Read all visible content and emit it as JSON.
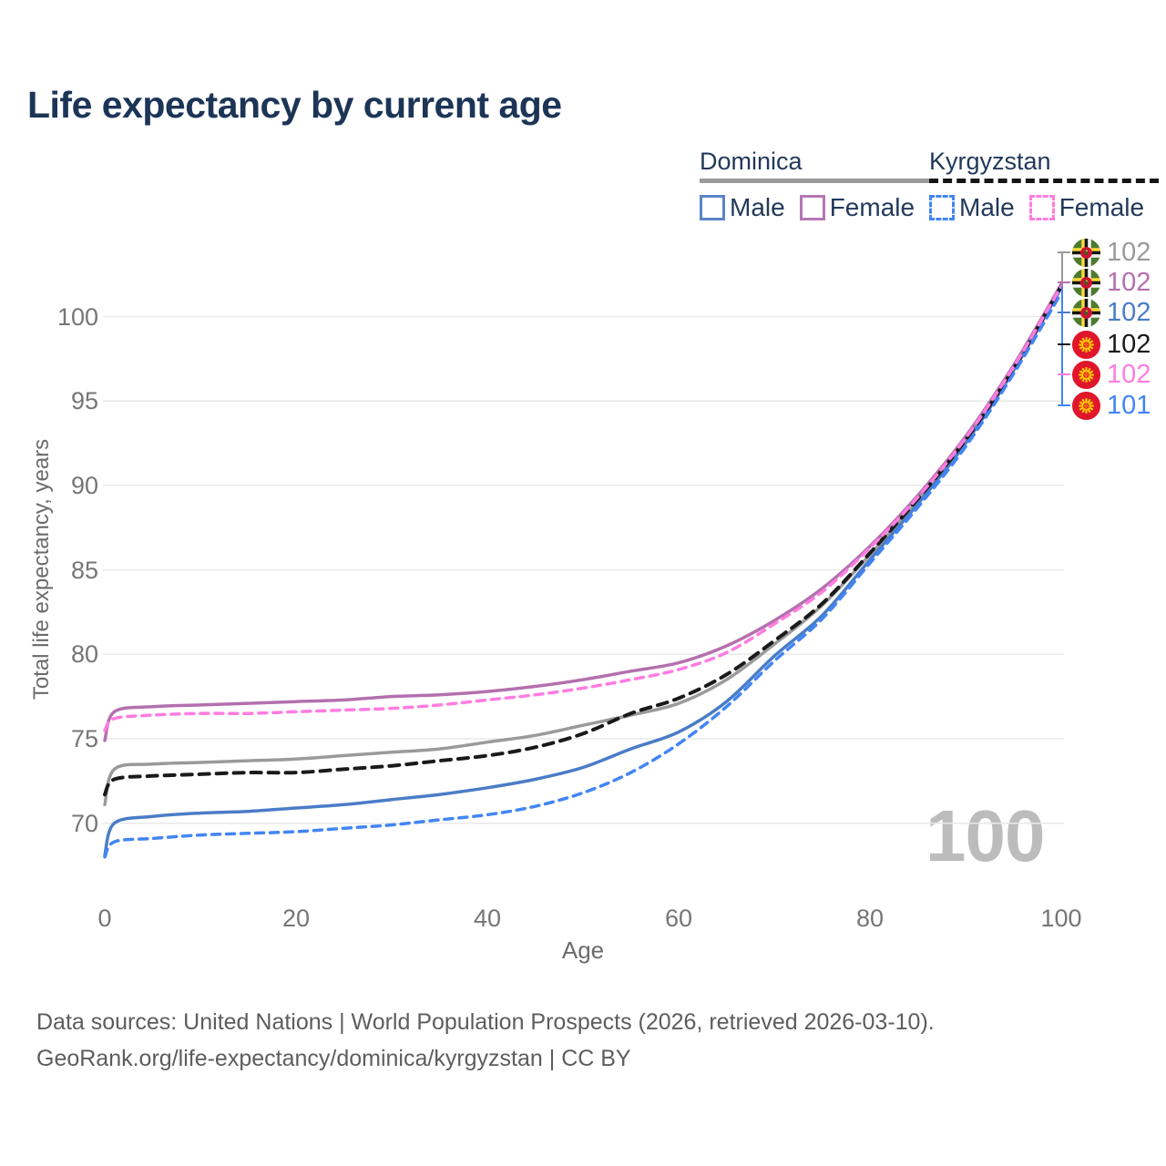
{
  "title": "Life expectancy by current age",
  "watermark": "100",
  "legend": {
    "groups": [
      {
        "name": "Dominica",
        "line_style": "solid",
        "underline_color": "#9a9a9a",
        "items": [
          {
            "label": "Male",
            "color": "#4a7cc7",
            "dashed": false
          },
          {
            "label": "Female",
            "color": "#b470ae",
            "dashed": false
          }
        ]
      },
      {
        "name": "Kyrgyzstan",
        "line_style": "dashed",
        "underline_color": "#1a1a1a",
        "items": [
          {
            "label": "Male",
            "color": "#4285f4",
            "dashed": true
          },
          {
            "label": "Female",
            "color": "#ff7ce1",
            "dashed": true
          }
        ]
      }
    ]
  },
  "y_axis": {
    "title": "Total life expectancy, years",
    "ticks": [
      70,
      75,
      80,
      85,
      90,
      95,
      100
    ]
  },
  "x_axis": {
    "title": "Age",
    "ticks": [
      0,
      20,
      40,
      60,
      80,
      100
    ]
  },
  "end_labels": [
    {
      "country": "Dominica",
      "series": "Total",
      "flag": "dominica",
      "value": "102",
      "color": "#9a9a9a"
    },
    {
      "country": "Dominica",
      "series": "Female",
      "flag": "dominica",
      "value": "102",
      "color": "#b470ae"
    },
    {
      "country": "Dominica",
      "series": "Male",
      "flag": "dominica",
      "value": "102",
      "color": "#4a7cc7"
    },
    {
      "country": "Kyrgyzstan",
      "series": "Total",
      "flag": "kyrgyzstan",
      "value": "102",
      "color": "#1a1a1a"
    },
    {
      "country": "Kyrgyzstan",
      "series": "Female",
      "flag": "kyrgyzstan",
      "value": "102",
      "color": "#ff7ce1"
    },
    {
      "country": "Kyrgyzstan",
      "series": "Male",
      "flag": "kyrgyzstan",
      "value": "101",
      "color": "#4285f4"
    }
  ],
  "footer": {
    "line1": "Data sources: United Nations | World Population Prospects (2026, retrieved 2026-03-10).",
    "line2": "GeoRank.org/life-expectancy/dominica/kyrgyzstan | CC BY"
  },
  "chart_data": {
    "type": "line",
    "title": "Life expectancy by current age",
    "xlabel": "Age",
    "ylabel": "Total life expectancy, years",
    "xlim": [
      0,
      100
    ],
    "ylim": [
      67,
      103
    ],
    "grid": "horizontal-only",
    "legend_position": "top-right",
    "x": [
      0,
      1,
      5,
      10,
      15,
      20,
      25,
      30,
      35,
      40,
      45,
      50,
      55,
      60,
      65,
      70,
      75,
      80,
      85,
      90,
      95,
      100
    ],
    "series": [
      {
        "name": "Dominica Total",
        "country": "Dominica",
        "sex": "Total",
        "color": "#9a9a9a",
        "dashed": false,
        "values": [
          71.1,
          73.2,
          73.5,
          73.6,
          73.7,
          73.8,
          74.0,
          74.2,
          74.4,
          74.8,
          75.2,
          75.8,
          76.4,
          77.1,
          78.5,
          80.6,
          82.9,
          85.9,
          89.1,
          92.7,
          96.9,
          101.9
        ]
      },
      {
        "name": "Dominica Female",
        "country": "Dominica",
        "sex": "Female",
        "color": "#b470ae",
        "dashed": false,
        "values": [
          74.9,
          76.6,
          76.9,
          77.0,
          77.1,
          77.2,
          77.3,
          77.5,
          77.6,
          77.8,
          78.1,
          78.5,
          79.0,
          79.5,
          80.5,
          82.0,
          83.9,
          86.4,
          89.4,
          92.9,
          97.1,
          101.9
        ]
      },
      {
        "name": "Dominica Male",
        "country": "Dominica",
        "sex": "Male",
        "color": "#4a7cc7",
        "dashed": false,
        "values": [
          68.1,
          70.0,
          70.4,
          70.6,
          70.7,
          70.9,
          71.1,
          71.4,
          71.7,
          72.1,
          72.6,
          73.3,
          74.4,
          75.4,
          77.2,
          79.9,
          82.3,
          85.6,
          88.9,
          92.5,
          96.8,
          101.7
        ]
      },
      {
        "name": "Kyrgyzstan Total",
        "country": "Kyrgyzstan",
        "sex": "Total",
        "color": "#1a1a1a",
        "dashed": true,
        "values": [
          71.7,
          72.6,
          72.8,
          72.9,
          73.0,
          73.0,
          73.2,
          73.4,
          73.7,
          74.0,
          74.5,
          75.3,
          76.5,
          77.4,
          78.8,
          80.8,
          83.0,
          86.0,
          89.2,
          92.7,
          96.9,
          101.8
        ]
      },
      {
        "name": "Kyrgyzstan Female",
        "country": "Kyrgyzstan",
        "sex": "Female",
        "color": "#ff7ce1",
        "dashed": true,
        "values": [
          75.5,
          76.2,
          76.4,
          76.5,
          76.5,
          76.6,
          76.7,
          76.8,
          77.0,
          77.3,
          77.6,
          78.0,
          78.5,
          79.1,
          80.1,
          81.8,
          83.7,
          86.3,
          89.3,
          92.8,
          97.0,
          101.8
        ]
      },
      {
        "name": "Kyrgyzstan Male",
        "country": "Kyrgyzstan",
        "sex": "Male",
        "color": "#4285f4",
        "dashed": true,
        "values": [
          68.0,
          68.9,
          69.1,
          69.3,
          69.4,
          69.5,
          69.7,
          69.9,
          70.2,
          70.5,
          71.0,
          71.8,
          73.0,
          74.7,
          76.9,
          79.6,
          82.1,
          85.4,
          88.7,
          92.3,
          96.6,
          101.4
        ]
      }
    ]
  }
}
